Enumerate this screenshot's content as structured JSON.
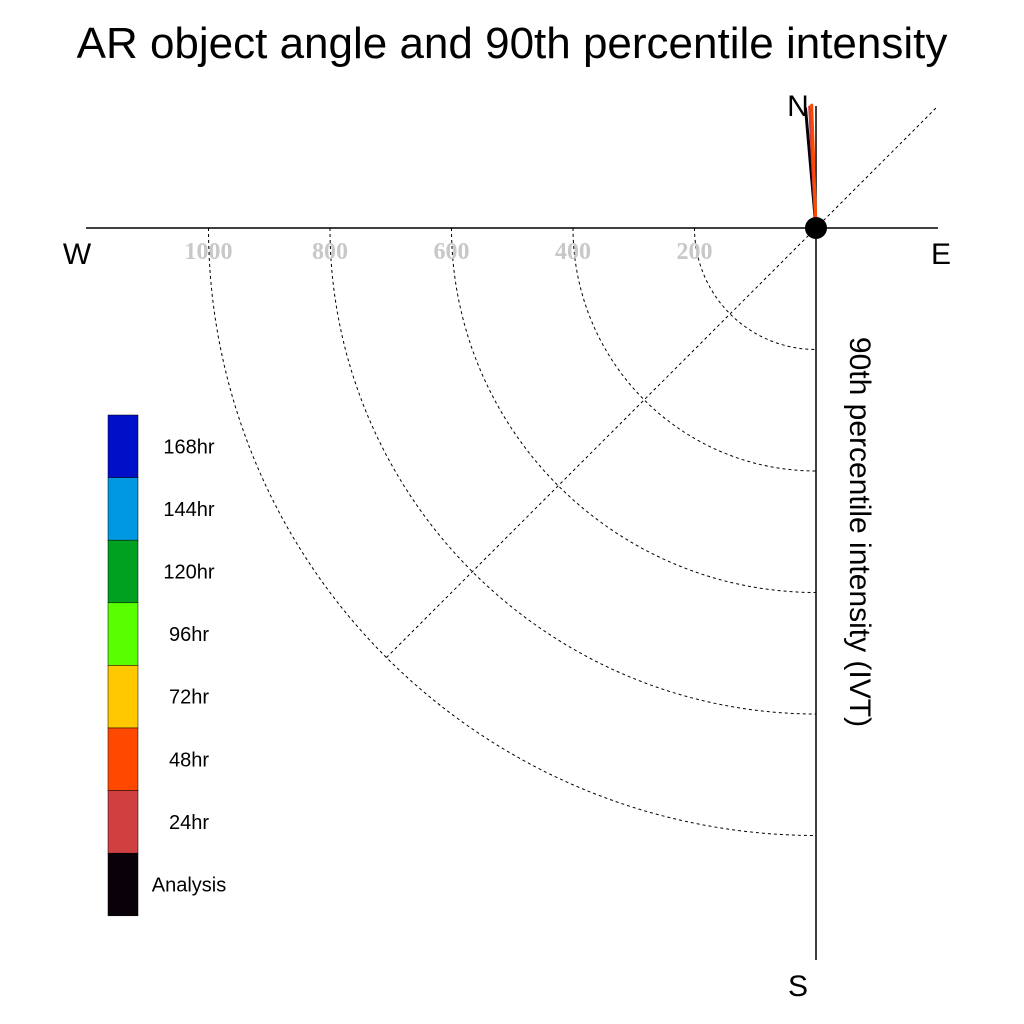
{
  "chart_data": {
    "type": "polar-quadrant",
    "title": "AR object angle and 90th percentile intensity",
    "ylabel": "90th percentile intensity (IVT)",
    "compass": {
      "north": "N",
      "south": "S",
      "east": "E",
      "west": "W"
    },
    "radial_ticks": [
      "200",
      "400",
      "600",
      "800",
      "1000"
    ],
    "radial_tick_values": [
      200,
      400,
      600,
      800,
      1000
    ],
    "radial_range": [
      0,
      1200
    ],
    "diagonal_angle_deg": 45,
    "legend": {
      "placement": "left",
      "entries": [
        {
          "label": "168hr",
          "color": "#0010c8"
        },
        {
          "label": "144hr",
          "color": "#0098e0"
        },
        {
          "label": "120hr",
          "color": "#00a020"
        },
        {
          "label": "96hr",
          "color": "#58ff00"
        },
        {
          "label": "72hr",
          "color": "#ffc800"
        },
        {
          "label": "48hr",
          "color": "#ff4800"
        },
        {
          "label": "24hr",
          "color": "#d04040"
        },
        {
          "label": "Analysis",
          "color": "#0a0008"
        }
      ]
    },
    "series": [
      {
        "name": "Analysis",
        "angle_deg": 355,
        "intensity": 200,
        "color": "#0a0008"
      },
      {
        "name": "24hr",
        "angle_deg": 357,
        "intensity": 202,
        "color": "#d04040"
      },
      {
        "name": "48hr",
        "angle_deg": 358,
        "intensity": 205,
        "color": "#ff4800"
      }
    ]
  }
}
